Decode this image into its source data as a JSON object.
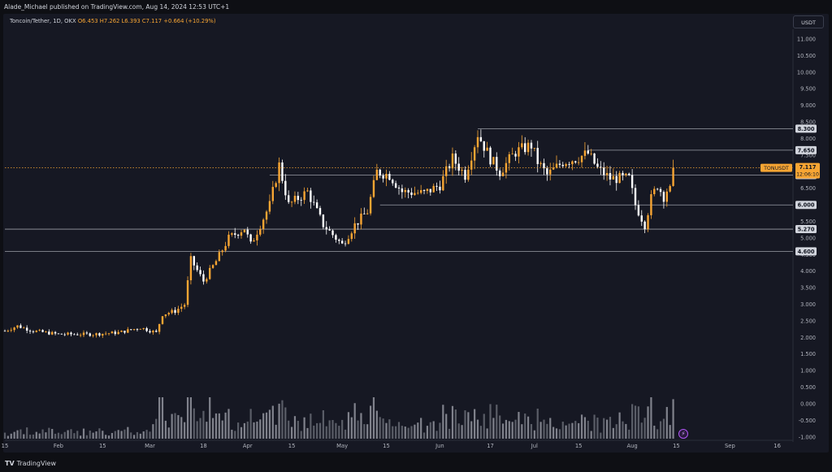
{
  "header": {
    "publisher": "Alade_Michael published on TradingView.com, Aug 14, 2024 12:53 UTC+1"
  },
  "legend": {
    "symbol": "Toncoin/Tether, 1D, OKX",
    "ohlc": "O6.453 H7.262 L6.393 C7.117 +0.664 (+10.29%)"
  },
  "currency": "USDT",
  "footer": {
    "brand": "TradingView",
    "logo_mark": "TV"
  },
  "colors": {
    "background": "#161823",
    "candle_up": "#f7a533",
    "candle_down": "#ffffff",
    "level_line": "#b2b5be",
    "price_line": "#f7a533",
    "volume": "#8a8d96"
  },
  "chart_data": {
    "type": "candlestick",
    "symbol": "TONUSDT",
    "y_axis": {
      "ylim": [
        -1.05,
        11.2
      ],
      "ticks": [
        "11.000",
        "10.500",
        "10.000",
        "9.500",
        "9.000",
        "8.500",
        "8.000",
        "7.500",
        "7.000",
        "6.500",
        "6.000",
        "5.500",
        "5.000",
        "4.500",
        "4.000",
        "3.500",
        "3.000",
        "2.500",
        "2.000",
        "1.500",
        "1.000",
        "0.500",
        "0.000",
        "-0.500",
        "-1.000"
      ]
    },
    "x_axis": {
      "start": "2024-01-15",
      "end": "2024-09-21",
      "ticks": [
        {
          "date": "2024-01-15",
          "label": "15"
        },
        {
          "date": "2024-02-01",
          "label": "Feb"
        },
        {
          "date": "2024-02-15",
          "label": "15"
        },
        {
          "date": "2024-03-01",
          "label": "Mar"
        },
        {
          "date": "2024-03-18",
          "label": "18"
        },
        {
          "date": "2024-04-01",
          "label": "Apr"
        },
        {
          "date": "2024-04-15",
          "label": "15"
        },
        {
          "date": "2024-05-01",
          "label": "May"
        },
        {
          "date": "2024-05-15",
          "label": "15"
        },
        {
          "date": "2024-06-01",
          "label": "Jun"
        },
        {
          "date": "2024-06-17",
          "label": "17"
        },
        {
          "date": "2024-07-01",
          "label": "Jul"
        },
        {
          "date": "2024-07-15",
          "label": "15"
        },
        {
          "date": "2024-08-01",
          "label": "Aug"
        },
        {
          "date": "2024-08-15",
          "label": "15"
        },
        {
          "date": "2024-09-01",
          "label": "Sep"
        },
        {
          "date": "2024-09-16",
          "label": "16"
        }
      ]
    },
    "key_levels": [
      {
        "value": 8.3,
        "label": "8.300",
        "from": "2024-06-13"
      },
      {
        "value": 7.65,
        "label": "7.650",
        "from": "2024-07-18"
      },
      {
        "value": 6.9,
        "label": "6.900",
        "from": "2024-04-08"
      },
      {
        "value": 6.0,
        "label": "6.000",
        "from": "2024-05-13"
      },
      {
        "value": 5.27,
        "label": "5.270",
        "from": "2024-01-15"
      },
      {
        "value": 4.6,
        "label": "4.600",
        "from": "2024-01-15"
      }
    ],
    "last_price": {
      "value": 7.117,
      "label": "7.117",
      "symbol": "TONUSDT",
      "countdown": "12:06:10"
    },
    "volume_ma_label": "volume",
    "anchors": [
      [
        "2024-01-15",
        2.2
      ],
      [
        "2024-01-19",
        2.35
      ],
      [
        "2024-01-24",
        2.2
      ],
      [
        "2024-02-01",
        2.1
      ],
      [
        "2024-02-12",
        2.1
      ],
      [
        "2024-02-20",
        2.15
      ],
      [
        "2024-02-27",
        2.3
      ],
      [
        "2024-03-03",
        2.15
      ],
      [
        "2024-03-05",
        2.7
      ],
      [
        "2024-03-09",
        2.8
      ],
      [
        "2024-03-12",
        3.0
      ],
      [
        "2024-03-14",
        4.35
      ],
      [
        "2024-03-18",
        3.7
      ],
      [
        "2024-03-22",
        4.3
      ],
      [
        "2024-03-26",
        5.0
      ],
      [
        "2024-03-31",
        5.3
      ],
      [
        "2024-04-02",
        4.8
      ],
      [
        "2024-04-08",
        6.0
      ],
      [
        "2024-04-11",
        7.2
      ],
      [
        "2024-04-14",
        6.0
      ],
      [
        "2024-04-20",
        6.4
      ],
      [
        "2024-04-25",
        5.4
      ],
      [
        "2024-05-01",
        4.8
      ],
      [
        "2024-05-05",
        5.4
      ],
      [
        "2024-05-09",
        5.8
      ],
      [
        "2024-05-12",
        7.0
      ],
      [
        "2024-05-16",
        6.9
      ],
      [
        "2024-05-20",
        6.4
      ],
      [
        "2024-05-27",
        6.35
      ],
      [
        "2024-06-01",
        6.6
      ],
      [
        "2024-06-05",
        7.4
      ],
      [
        "2024-06-09",
        6.9
      ],
      [
        "2024-06-13",
        8.15
      ],
      [
        "2024-06-17",
        7.4
      ],
      [
        "2024-06-20",
        7.0
      ],
      [
        "2024-06-25",
        7.6
      ],
      [
        "2024-06-30",
        7.8
      ],
      [
        "2024-07-02",
        7.3
      ],
      [
        "2024-07-05",
        6.9
      ],
      [
        "2024-07-10",
        7.3
      ],
      [
        "2024-07-14",
        7.4
      ],
      [
        "2024-07-18",
        7.55
      ],
      [
        "2024-07-21",
        7.1
      ],
      [
        "2024-07-25",
        6.8
      ],
      [
        "2024-07-31",
        6.8
      ],
      [
        "2024-08-02",
        6.0
      ],
      [
        "2024-08-05",
        5.4
      ],
      [
        "2024-08-07",
        6.2
      ],
      [
        "2024-08-09",
        6.6
      ],
      [
        "2024-08-11",
        6.25
      ],
      [
        "2024-08-12",
        6.45
      ],
      [
        "2024-08-13",
        6.45
      ],
      [
        "2024-08-14",
        7.12
      ]
    ]
  }
}
